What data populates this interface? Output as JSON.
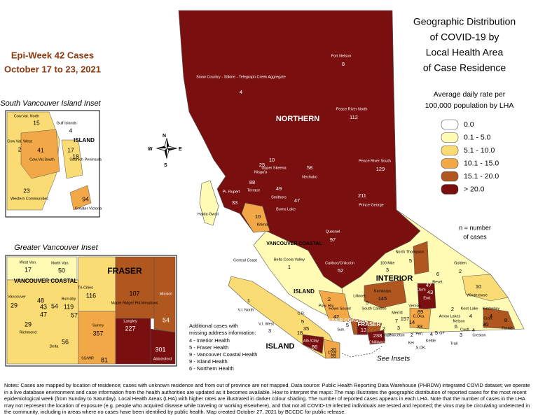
{
  "title": [
    "Geographic Distribution",
    "of COVID-19 by",
    "Local Health Area",
    "of Case Residence"
  ],
  "subtitle": [
    "Epi-Week 42 Cases",
    "October 17 to 23, 2021"
  ],
  "legend": {
    "title": [
      "Average daily rate per",
      "100,000 population by LHA"
    ],
    "items": [
      {
        "label": "0.0",
        "color": "#ffffff"
      },
      {
        "label": "0.1 - 5.0",
        "color": "#fffbb5"
      },
      {
        "label": "5.1 - 10.0",
        "color": "#fbdc74"
      },
      {
        "label": "10.1 - 15.0",
        "color": "#f2a846"
      },
      {
        "label": "15.1 - 20.0",
        "color": "#b0561f"
      },
      {
        "label": "> 20.0",
        "color": "#7a0f10"
      }
    ],
    "note": [
      "n = number",
      "of cases"
    ]
  },
  "compass": [
    "N",
    "E",
    "S",
    "W"
  ],
  "regions": [
    "NORTHERN",
    "INTERIOR",
    "VANCOUVER COASTAL",
    "ISLAND",
    "VANCOUVER COASTAL",
    "FRASER",
    "ISLAND"
  ],
  "places": [
    "Haida Gwaii",
    "Central Coast",
    "South Cariboo",
    "Trail",
    "S.OK.",
    "CVW"
  ],
  "lha": [
    {
      "name": "Fort Nelson",
      "cases": 8
    },
    {
      "name": "Snow Country - Stikine - Telegraph Creek Aggregate",
      "cases": 4
    },
    {
      "name": "Peace River North",
      "cases": 112
    },
    {
      "name": "Peace River South",
      "cases": 129
    },
    {
      "name": "Nisga'a",
      "cases": 25
    },
    {
      "name": "Upper Skeena",
      "cases": 10
    },
    {
      "name": "Nechako",
      "cases": 58
    },
    {
      "name": "Terrace",
      "cases": 88
    },
    {
      "name": "Smithers",
      "cases": 49
    },
    {
      "name": "Prince George",
      "cases": 211
    },
    {
      "name": "Burns Lake",
      "cases": 47
    },
    {
      "name": "Pr. Rupert",
      "cases": 33
    },
    {
      "name": "Kitimat",
      "cases": 10
    },
    {
      "name": "Quesnel",
      "cases": 97
    },
    {
      "name": "Cariboo/Chilcotin",
      "cases": 52
    },
    {
      "name": "Bella Coola Valley",
      "cases": 1
    },
    {
      "name": "North Thompson",
      "cases": 5
    },
    {
      "name": "100 Mile",
      "cases": 3
    },
    {
      "name": "Golden",
      "cases": 2
    },
    {
      "name": "Revel.",
      "cases": 6
    },
    {
      "name": "Kamloops",
      "cases": 145
    },
    {
      "name": "Lillooet",
      "cases": 5
    },
    {
      "name": "Windermere",
      "cases": 10
    },
    {
      "name": "S.Arm",
      "cases": 43
    },
    {
      "name": "End.",
      "cases": 47
    },
    {
      "name": "Vernon",
      "cases": 89
    },
    {
      "name": "Merritt",
      "cases": 7
    },
    {
      "name": "C.Oka.",
      "cases": 157
    },
    {
      "name": "Arrow Lakes",
      "cases": 2
    },
    {
      "name": "Koot Lake",
      "cases": 4
    },
    {
      "name": "Kimberley",
      "cases": 4
    },
    {
      "name": "Cran.",
      "cases": 30
    },
    {
      "name": "Fernie",
      "cases": 8
    },
    {
      "name": "Nelson",
      "cases": 6
    },
    {
      "name": "Castl.",
      "cases": 3
    },
    {
      "name": "Creston",
      "cases": 4
    },
    {
      "name": "GF",
      "cases": 5
    },
    {
      "name": "Kettle",
      "cases": 4
    },
    {
      "name": "Princeton",
      "cases": 3
    },
    {
      "name": "Ker",
      "cases": 2
    },
    {
      "name": "Pen.",
      "cases": 33
    },
    {
      "name": null,
      "cases": 14
    },
    {
      "name": "V.I. North",
      "cases": 1
    },
    {
      "name": "V.I. West",
      "cases": 3
    },
    {
      "name": "C.R.",
      "cases": 5
    },
    {
      "name": null,
      "cases": 35
    },
    {
      "name": null,
      "cases": 18
    },
    {
      "name": "Pow. Riv.",
      "cases": 2
    },
    {
      "name": "Howe Sound",
      "cases": 42
    },
    {
      "name": "Sun.",
      "cases": 5
    },
    {
      "name": "Alb./Clay",
      "cases": 66
    },
    {
      "name": null,
      "cases": 20
    },
    {
      "name": null,
      "cases": 85
    },
    {
      "name": "Hope",
      "cases": 2
    },
    {
      "name": "Chilliwack",
      "cases": 238
    },
    {
      "name": null,
      "cases": 13
    }
  ],
  "south_island_inset": {
    "title": "South Vancouver Island Inset",
    "region": "ISLAND",
    "lha": [
      {
        "name": "Cow.Val. North",
        "cases": 15
      },
      {
        "name": "Gulf Islands",
        "cases": 4
      },
      {
        "name": "Cow.Val. West",
        "cases": 2
      },
      {
        "name": "Cow.Val.South",
        "cases": 41
      },
      {
        "name": null,
        "cases": 17
      },
      {
        "name": "Saanich Peninsula",
        "cases": 18
      },
      {
        "name": "Western Communities",
        "cases": 23
      },
      {
        "name": "Greater Victoria",
        "cases": 94
      }
    ]
  },
  "vancouver_inset": {
    "title": "Greater Vancouver Inset",
    "regions": [
      "FRASER",
      "VANCOUVER COASTAL"
    ],
    "lha": [
      {
        "name": "West Van.",
        "cases": 17
      },
      {
        "name": "North Van.",
        "cases": 50
      },
      {
        "name": "Tri-Cities",
        "cases": 116
      },
      {
        "name": "Maple Ridge/ Pitt Meadows",
        "cases": 107
      },
      {
        "name": "Vancouver",
        "cases": 29
      },
      {
        "name": null,
        "cases": 48
      },
      {
        "name": null,
        "cases": 43
      },
      {
        "name": null,
        "cases": 54
      },
      {
        "name": null,
        "cases": 47
      },
      {
        "name": "Burnaby",
        "cases": 119
      },
      {
        "name": null,
        "cases": 57
      },
      {
        "name": "Richmond",
        "cases": 29
      },
      {
        "name": "Delta",
        "cases": 56
      },
      {
        "name": "Mission",
        "cases": 54
      },
      {
        "name": "Surrey",
        "cases": 357
      },
      {
        "name": "Langley",
        "cases": 227
      },
      {
        "name": "Abbotsford",
        "cases": 301
      },
      {
        "name": "SS/WR",
        "cases": 81
      }
    ]
  },
  "see_insets": "See Insets",
  "additional_cases": {
    "title": [
      "Additional cases with",
      "missing address information:"
    ],
    "items": [
      "4 - Interior Health",
      "5 - Fraser Health",
      "9 - Vancouver Coastal Health",
      "9 - Island Health",
      "6 - Northern Health"
    ]
  },
  "notes": "Notes: Cases are mapped by location of residence; cases with unknown residence and from out of province are not mapped. Data source: Public Health Reporting Data Warehouse (PHRDW) integrated COVID dataset; we operate in a live database environment and case information from the health authorities are updated as it becomes available. How to interpret the maps: The map illustrates the geographic distribution of reported cases for the most recent epidemiological week (from Sunday to Saturday). Local Health Areas (LHA) with higher rates are illustrated in darker colour shading. The number of reported cases appears in each LHA. Note that the number of cases in the LHA may not represent the location of exposure (e.g. people who acquired disease while traveling or working elsewhere), and that not all COVID-19 infected individuals are tested and reported; the virus may be circulating undetected in the community, including in areas where no cases have been identified by public health. Map created October 27, 2021 by BCCDC for public release."
}
